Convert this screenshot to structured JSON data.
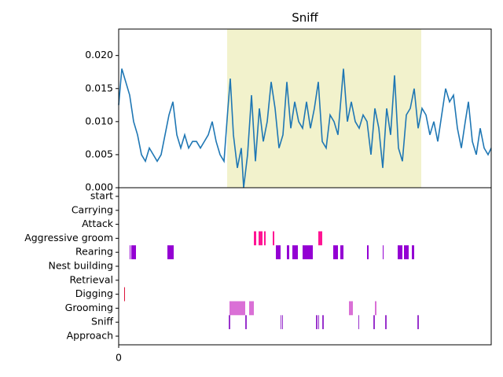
{
  "chart_data": [
    {
      "type": "line",
      "title": "Sniff",
      "x": [
        0,
        4,
        9,
        14,
        19,
        24,
        29,
        34,
        39,
        44,
        49,
        54,
        59,
        64,
        69,
        74,
        79,
        84,
        89,
        94,
        99,
        104,
        109,
        114,
        119,
        124,
        129,
        134,
        139,
        142,
        146,
        151,
        156,
        159,
        164,
        169,
        174,
        179,
        184,
        189,
        194,
        199,
        204,
        209,
        214,
        219,
        224,
        229,
        234,
        239,
        244,
        249,
        254,
        259,
        264,
        269,
        274,
        279,
        286,
        291,
        296,
        301,
        306,
        311,
        316,
        321,
        326,
        331,
        336,
        341,
        346,
        351,
        356,
        361,
        366,
        371,
        376,
        381,
        386,
        391,
        396,
        401,
        406,
        411,
        416,
        421,
        426,
        431,
        436,
        441,
        445,
        450,
        455,
        460,
        465,
        470,
        474
      ],
      "series": [
        {
          "color": "#1f77b4",
          "values": [
            0.0125,
            0.018,
            0.016,
            0.014,
            0.01,
            0.008,
            0.005,
            0.004,
            0.006,
            0.005,
            0.004,
            0.005,
            0.008,
            0.011,
            0.013,
            0.008,
            0.006,
            0.008,
            0.006,
            0.007,
            0.007,
            0.006,
            0.007,
            0.008,
            0.01,
            0.007,
            0.005,
            0.004,
            0.012,
            0.0165,
            0.008,
            0.003,
            0.006,
            0.0,
            0.005,
            0.014,
            0.004,
            0.012,
            0.007,
            0.01,
            0.016,
            0.012,
            0.006,
            0.008,
            0.016,
            0.009,
            0.013,
            0.01,
            0.009,
            0.013,
            0.009,
            0.012,
            0.016,
            0.007,
            0.006,
            0.011,
            0.01,
            0.008,
            0.018,
            0.01,
            0.013,
            0.01,
            0.009,
            0.011,
            0.01,
            0.005,
            0.012,
            0.009,
            0.003,
            0.012,
            0.008,
            0.017,
            0.006,
            0.004,
            0.011,
            0.012,
            0.015,
            0.009,
            0.012,
            0.011,
            0.008,
            0.01,
            0.007,
            0.011,
            0.015,
            0.013,
            0.014,
            0.009,
            0.006,
            0.01,
            0.013,
            0.007,
            0.005,
            0.009,
            0.006,
            0.005,
            0.006
          ]
        }
      ],
      "span": [
        138,
        385
      ],
      "span_color": "#f2f2cc",
      "xlim": [
        0,
        474
      ],
      "ylim": [
        0,
        0.024
      ],
      "yticks": [
        {
          "value": 0,
          "label": "0.000"
        },
        {
          "value": 0.005,
          "label": "0.005"
        },
        {
          "value": 0.01,
          "label": "0.010"
        },
        {
          "value": 0.015,
          "label": "0.015"
        },
        {
          "value": 0.02,
          "label": "0.020"
        }
      ]
    },
    {
      "type": "events",
      "xlim": [
        0,
        474
      ],
      "xticks": [
        0
      ],
      "rows": [
        {
          "label": "start",
          "color": "#000000",
          "intervals": []
        },
        {
          "label": "Carrying",
          "color": "#000000",
          "intervals": []
        },
        {
          "label": "Attack",
          "color": "#000000",
          "intervals": []
        },
        {
          "label": "Aggressive groom",
          "color": "#ff1493",
          "intervals": [
            [
              172,
              175
            ],
            [
              178,
              183
            ],
            [
              185,
              187
            ],
            [
              196,
              198
            ],
            [
              254,
              259
            ]
          ]
        },
        {
          "label": "Rearing",
          "color": "#9400d3",
          "intervals": [
            [
              14,
              15
            ],
            [
              16,
              22
            ],
            [
              62,
              70
            ],
            [
              200,
              206
            ],
            [
              214,
              217
            ],
            [
              221,
              228
            ],
            [
              234,
              247
            ],
            [
              273,
              279
            ],
            [
              282,
              286
            ],
            [
              316,
              318
            ],
            [
              336,
              337
            ],
            [
              355,
              361
            ],
            [
              363,
              369
            ],
            [
              373,
              376
            ]
          ]
        },
        {
          "label": "Nest building",
          "color": "#000000",
          "intervals": []
        },
        {
          "label": "Retrieval",
          "color": "#000000",
          "intervals": []
        },
        {
          "label": "Digging",
          "color": "#dc143c",
          "intervals": [
            [
              7,
              8
            ]
          ]
        },
        {
          "label": "Grooming",
          "color": "#da70d6",
          "intervals": [
            [
              141,
              161
            ],
            [
              166,
              172
            ],
            [
              293,
              298
            ],
            [
              326,
              328
            ]
          ]
        },
        {
          "label": "Sniff",
          "color": "#9932cc",
          "intervals": [
            [
              140,
              142
            ],
            [
              161,
              163
            ],
            [
              206,
              207
            ],
            [
              208,
              209
            ],
            [
              251,
              253
            ],
            [
              254,
              255
            ],
            [
              259,
              261
            ],
            [
              305,
              306
            ],
            [
              324,
              326
            ],
            [
              339,
              341
            ],
            [
              380,
              382
            ]
          ]
        },
        {
          "label": "Approach",
          "color": "#000000",
          "intervals": []
        }
      ]
    }
  ]
}
